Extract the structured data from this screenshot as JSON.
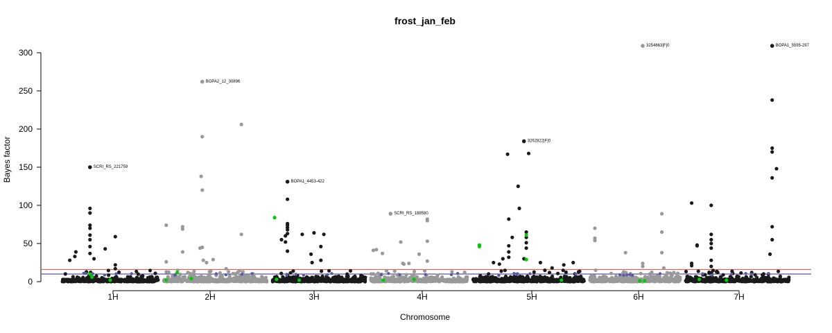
{
  "chart_data": {
    "type": "scatter",
    "title": "frost_jan_feb",
    "xlabel": "Chromosome",
    "ylabel": "Bayes factor",
    "ylim": [
      0,
      300
    ],
    "yticks": [
      0,
      50,
      100,
      150,
      200,
      250,
      300
    ],
    "chromosomes": [
      "1H",
      "2H",
      "3H",
      "4H",
      "5H",
      "6H",
      "7H"
    ],
    "chromosome_colors": [
      "#1a1a1a",
      "#999999",
      "#1a1a1a",
      "#999999",
      "#1a1a1a",
      "#999999",
      "#1a1a1a"
    ],
    "highlight_color": "#00cc00",
    "thresholds": [
      {
        "value": 16,
        "color": "#e8433a"
      },
      {
        "value": 10,
        "color": "#2b2b8a"
      }
    ],
    "annotations": [
      {
        "label": "SCRI_RS_221759",
        "chrom": "1H",
        "pos": 0.3,
        "value": 150
      },
      {
        "label": "BOPA2_12_30896",
        "chrom": "2H",
        "pos": 0.38,
        "value": 262
      },
      {
        "label": "BOPA1_4453-422",
        "chrom": "3H",
        "pos": 0.18,
        "value": 131
      },
      {
        "label": "SCRI_RS_188580",
        "chrom": "4H",
        "pos": 0.22,
        "value": 89
      },
      {
        "label": "3262822|F|0",
        "chrom": "5H",
        "pos": 0.46,
        "value": 184
      },
      {
        "label": "3254663|F|0",
        "chrom": "6H",
        "pos": 0.58,
        "value": 309
      },
      {
        "label": "BOPA1_5595-297",
        "chrom": "7H",
        "pos": 0.82,
        "value": 309
      }
    ],
    "peaks": [
      {
        "chrom": "1H",
        "points": [
          [
            0.1,
            28
          ],
          [
            0.15,
            33
          ],
          [
            0.16,
            39
          ],
          [
            0.3,
            96
          ],
          [
            0.3,
            90
          ],
          [
            0.3,
            74
          ],
          [
            0.3,
            70
          ],
          [
            0.3,
            61
          ],
          [
            0.3,
            55
          ],
          [
            0.3,
            46
          ],
          [
            0.3,
            37
          ],
          [
            0.34,
            30
          ],
          [
            0.45,
            43
          ],
          [
            0.55,
            59
          ],
          [
            0.55,
            22
          ],
          [
            0.55,
            17
          ]
        ]
      },
      {
        "chrom": "2H",
        "points": [
          [
            0.05,
            74
          ],
          [
            0.05,
            26
          ],
          [
            0.2,
            72
          ],
          [
            0.2,
            69
          ],
          [
            0.2,
            39
          ],
          [
            0.36,
            44
          ],
          [
            0.38,
            190
          ],
          [
            0.37,
            138
          ],
          [
            0.38,
            120
          ],
          [
            0.38,
            45
          ],
          [
            0.39,
            28
          ],
          [
            0.42,
            25
          ],
          [
            0.48,
            29
          ],
          [
            0.6,
            17
          ],
          [
            0.74,
            206
          ],
          [
            0.74,
            62
          ]
        ]
      },
      {
        "chrom": "3H",
        "points": [
          [
            0.12,
            55
          ],
          [
            0.16,
            60
          ],
          [
            0.16,
            52
          ],
          [
            0.18,
            108
          ],
          [
            0.18,
            76
          ],
          [
            0.18,
            74
          ],
          [
            0.18,
            71
          ],
          [
            0.18,
            68
          ],
          [
            0.18,
            63
          ],
          [
            0.18,
            40
          ],
          [
            0.33,
            62
          ],
          [
            0.45,
            64
          ],
          [
            0.42,
            36
          ],
          [
            0.43,
            25
          ],
          [
            0.52,
            46
          ],
          [
            0.55,
            62
          ],
          [
            0.52,
            28
          ]
        ]
      },
      {
        "chrom": "4H",
        "points": [
          [
            0.05,
            41
          ],
          [
            0.08,
            42
          ],
          [
            0.14,
            37
          ],
          [
            0.32,
            52
          ],
          [
            0.34,
            24
          ],
          [
            0.35,
            23
          ],
          [
            0.4,
            24
          ],
          [
            0.5,
            36
          ],
          [
            0.58,
            82
          ],
          [
            0.58,
            80
          ],
          [
            0.58,
            53
          ],
          [
            0.58,
            27
          ],
          [
            0.45,
            9
          ]
        ]
      },
      {
        "chrom": "5H",
        "points": [
          [
            0.2,
            25
          ],
          [
            0.25,
            23
          ],
          [
            0.28,
            30
          ],
          [
            0.32,
            167
          ],
          [
            0.33,
            82
          ],
          [
            0.36,
            58
          ],
          [
            0.41,
            125
          ],
          [
            0.42,
            96
          ],
          [
            0.46,
            30
          ],
          [
            0.5,
            168
          ],
          [
            0.48,
            65
          ],
          [
            0.48,
            58
          ],
          [
            0.48,
            51
          ],
          [
            0.48,
            44
          ],
          [
            0.6,
            25
          ],
          [
            0.7,
            18
          ],
          [
            0.8,
            22
          ],
          [
            0.88,
            25
          ],
          [
            0.33,
            47
          ],
          [
            0.33,
            39
          ],
          [
            0.33,
            32
          ]
        ]
      },
      {
        "chrom": "6H",
        "points": [
          [
            0.08,
            57
          ],
          [
            0.08,
            54
          ],
          [
            0.08,
            70
          ],
          [
            0.4,
            38
          ],
          [
            0.58,
            24
          ],
          [
            0.58,
            20
          ],
          [
            0.78,
            89
          ],
          [
            0.78,
            65
          ],
          [
            0.78,
            38
          ],
          [
            0.8,
            18
          ]
        ]
      },
      {
        "chrom": "7H",
        "points": [
          [
            0.08,
            103
          ],
          [
            0.08,
            24
          ],
          [
            0.08,
            21
          ],
          [
            0.13,
            48
          ],
          [
            0.13,
            47
          ],
          [
            0.26,
            100
          ],
          [
            0.26,
            62
          ],
          [
            0.26,
            55
          ],
          [
            0.26,
            50
          ],
          [
            0.26,
            44
          ],
          [
            0.26,
            28
          ],
          [
            0.26,
            20
          ],
          [
            0.32,
            12
          ],
          [
            0.82,
            238
          ],
          [
            0.82,
            175
          ],
          [
            0.82,
            170
          ],
          [
            0.82,
            136
          ],
          [
            0.82,
            72
          ],
          [
            0.82,
            55
          ],
          [
            0.86,
            148
          ],
          [
            0.8,
            36
          ]
        ]
      }
    ],
    "highlights": [
      {
        "chrom": "1H",
        "points": [
          [
            0.3,
            10
          ],
          [
            0.32,
            6
          ],
          [
            0.5,
            2
          ]
        ]
      },
      {
        "chrom": "2H",
        "points": [
          [
            0.05,
            2
          ],
          [
            0.15,
            12
          ],
          [
            0.28,
            4
          ]
        ]
      },
      {
        "chrom": "3H",
        "points": [
          [
            0.05,
            84
          ],
          [
            0.07,
            3
          ],
          [
            0.3,
            2
          ]
        ]
      },
      {
        "chrom": "4H",
        "points": [
          [
            0.15,
            2
          ],
          [
            0.45,
            3
          ]
        ]
      },
      {
        "chrom": "5H",
        "points": [
          [
            0.48,
            61
          ],
          [
            0.48,
            29
          ],
          [
            0.08,
            46
          ],
          [
            0.08,
            48
          ],
          [
            0.78,
            2
          ]
        ]
      },
      {
        "chrom": "6H",
        "points": [
          [
            0.55,
            1
          ],
          [
            0.6,
            1
          ]
        ]
      },
      {
        "chrom": "7H",
        "points": [
          [
            0.15,
            3
          ],
          [
            0.4,
            2
          ]
        ]
      }
    ]
  }
}
